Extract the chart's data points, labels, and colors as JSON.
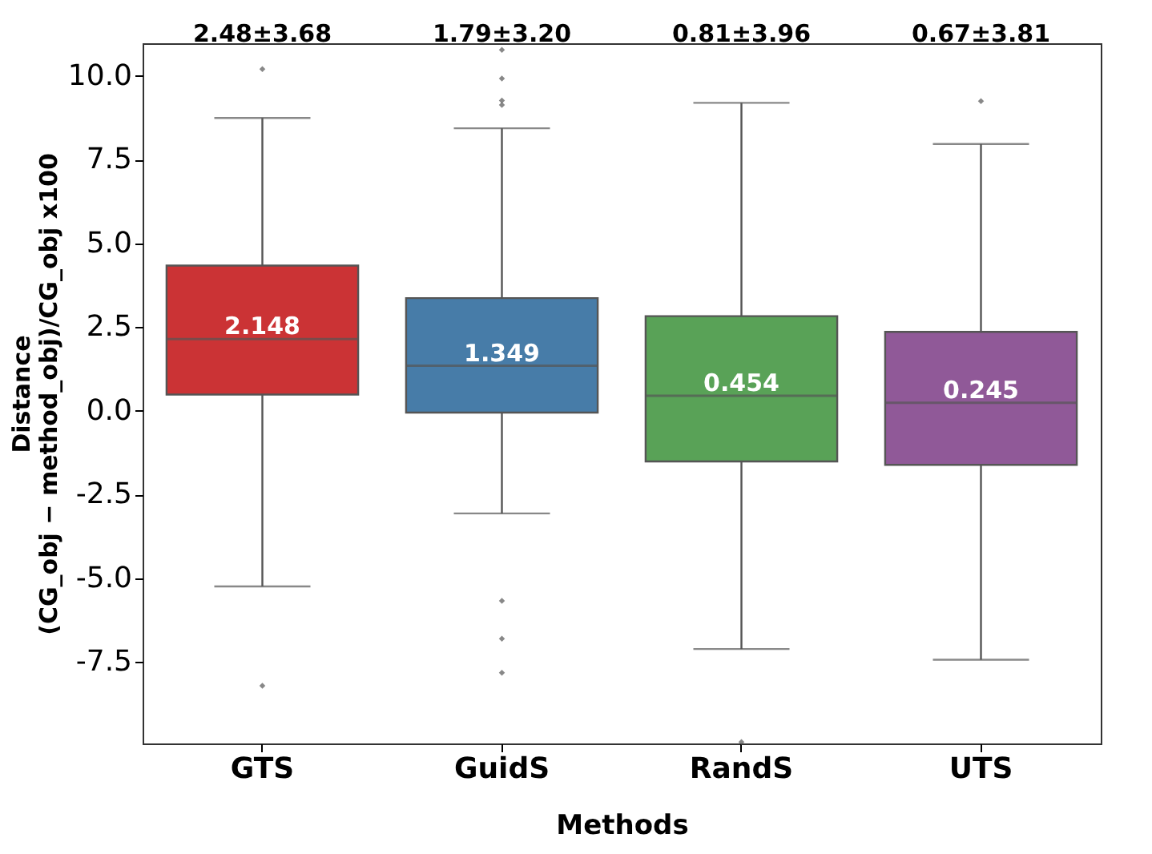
{
  "chart_data": {
    "type": "box",
    "categories": [
      "GTS",
      "GuidS",
      "RandS",
      "UTS"
    ],
    "colors": [
      "#cb3335",
      "#477ca8",
      "#59a257",
      "#905998"
    ],
    "boxes": [
      {
        "low": -5.24,
        "q1": 0.49,
        "median": 2.148,
        "q3": 4.34,
        "high": 8.75,
        "outliers": [
          10.21,
          -8.21
        ]
      },
      {
        "low": -3.06,
        "q1": -0.05,
        "median": 1.349,
        "q3": 3.37,
        "high": 8.44,
        "outliers": [
          10.78,
          9.93,
          9.27,
          9.14,
          -5.67,
          -6.8,
          -7.82
        ]
      },
      {
        "low": -7.11,
        "q1": -1.51,
        "median": 0.454,
        "q3": 2.83,
        "high": 9.2,
        "outliers": [
          -9.89
        ]
      },
      {
        "low": -7.43,
        "q1": -1.61,
        "median": 0.245,
        "q3": 2.36,
        "high": 7.97,
        "outliers": [
          9.25
        ]
      }
    ],
    "value_labels": [
      "2.148",
      "1.349",
      "0.454",
      "0.245"
    ],
    "annotations": [
      "2.48±3.68",
      "1.79±3.20",
      "0.81±3.96",
      "0.67±3.81"
    ],
    "xlabel": "Methods",
    "ylabel": "Distance\n(CG_obj − method_obj)/CG_obj x100",
    "ylim": [
      -9.93,
      10.98
    ],
    "yticks": [
      -7.5,
      {
        "value": -5,
        "label": "-5.0"
      },
      -2.5,
      {
        "value": 0,
        "label": "0.0"
      },
      2.5,
      {
        "value": 5,
        "label": "5.0"
      },
      7.5,
      {
        "value": 10,
        "label": "10.0"
      }
    ],
    "grid": false
  }
}
